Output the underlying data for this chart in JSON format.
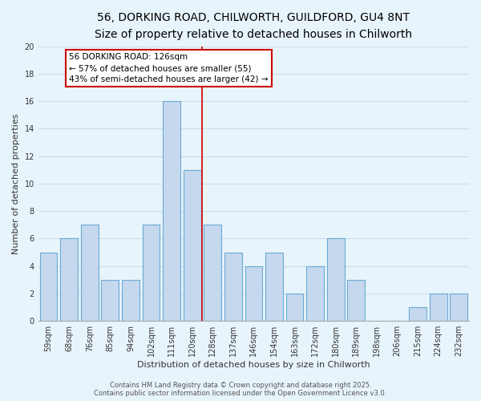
{
  "title": "56, DORKING ROAD, CHILWORTH, GUILDFORD, GU4 8NT",
  "subtitle": "Size of property relative to detached houses in Chilworth",
  "xlabel": "Distribution of detached houses by size in Chilworth",
  "ylabel": "Number of detached properties",
  "bar_labels": [
    "59sqm",
    "68sqm",
    "76sqm",
    "85sqm",
    "94sqm",
    "102sqm",
    "111sqm",
    "120sqm",
    "128sqm",
    "137sqm",
    "146sqm",
    "154sqm",
    "163sqm",
    "172sqm",
    "180sqm",
    "189sqm",
    "198sqm",
    "206sqm",
    "215sqm",
    "224sqm",
    "232sqm"
  ],
  "bar_values": [
    5,
    6,
    7,
    3,
    3,
    7,
    16,
    11,
    7,
    5,
    4,
    5,
    2,
    4,
    6,
    3,
    0,
    0,
    1,
    2,
    2
  ],
  "bar_color": "#c5d8ee",
  "bar_edge_color": "#6aaad4",
  "vline_color": "#cc0000",
  "grid_color": "#ccdcec",
  "background_color": "#e8f4fb",
  "ylim": [
    0,
    20
  ],
  "yticks": [
    0,
    2,
    4,
    6,
    8,
    10,
    12,
    14,
    16,
    18,
    20
  ],
  "annotation_title": "56 DORKING ROAD: 126sqm",
  "annotation_line1": "← 57% of detached houses are smaller (55)",
  "annotation_line2": "43% of semi-detached houses are larger (42) →",
  "annotation_box_color": "#ffffff",
  "annotation_border_color": "#cc0000",
  "footer_line1": "Contains HM Land Registry data © Crown copyright and database right 2025.",
  "footer_line2": "Contains public sector information licensed under the Open Government Licence v3.0.",
  "title_fontsize": 10,
  "subtitle_fontsize": 9,
  "label_fontsize": 8,
  "tick_fontsize": 7,
  "annotation_fontsize": 7.5,
  "footer_fontsize": 6
}
